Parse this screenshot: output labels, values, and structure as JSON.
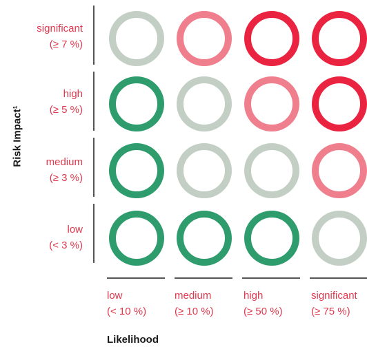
{
  "y_axis": {
    "title": "Risk Impact¹",
    "rows": [
      {
        "name": "significant",
        "range": "(≥ 7 %)"
      },
      {
        "name": "high",
        "range": "(≥ 5 %)"
      },
      {
        "name": "medium",
        "range": "(≥ 3 %)"
      },
      {
        "name": "low",
        "range": "(< 3 %)"
      }
    ]
  },
  "x_axis": {
    "title": "Likelihood",
    "columns": [
      {
        "name": "low",
        "range": "(< 10 %)"
      },
      {
        "name": "medium",
        "range": "(≥ 10 %)"
      },
      {
        "name": "high",
        "range": "(≥ 50 %)"
      },
      {
        "name": "significant",
        "range": "(≥ 75 %)"
      }
    ]
  },
  "colors": {
    "label": "#e0384c",
    "low": "#2f9c6e",
    "neutral": "#c3cfc5",
    "elevated": "#f07f8e",
    "high": "#ea2440"
  },
  "matrix": [
    [
      "neutral",
      "elevated",
      "high",
      "high"
    ],
    [
      "low",
      "neutral",
      "elevated",
      "high"
    ],
    [
      "low",
      "neutral",
      "neutral",
      "elevated"
    ],
    [
      "low",
      "low",
      "low",
      "neutral"
    ]
  ]
}
